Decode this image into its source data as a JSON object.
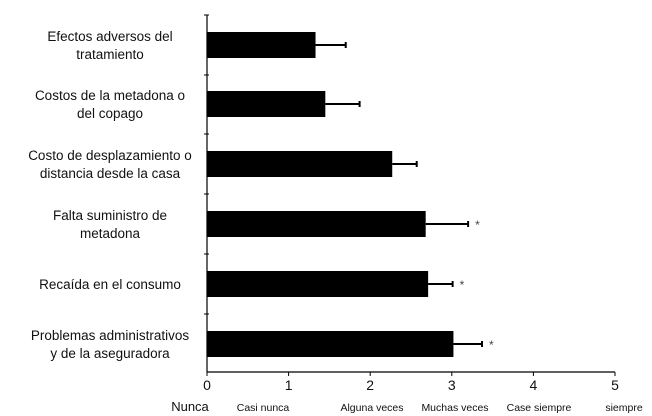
{
  "chart_data": {
    "type": "bar",
    "orientation": "horizontal",
    "categories": [
      [
        "Efectos adversos del",
        "tratamiento"
      ],
      [
        "Costos de la metadona o",
        "del copago"
      ],
      [
        "Costo de desplazamiento o",
        "distancia desde la casa"
      ],
      [
        "Falta suministro de",
        "metadona"
      ],
      [
        "Recaída en el consumo"
      ],
      [
        "Problemas administrativos",
        "y de la aseguradora"
      ]
    ],
    "values": [
      1.33,
      1.45,
      2.27,
      2.68,
      2.71,
      3.02
    ],
    "error": [
      0.37,
      0.42,
      0.3,
      0.52,
      0.3,
      0.35
    ],
    "significance": [
      "",
      "",
      "",
      "*",
      "*",
      "*"
    ],
    "xlim": [
      0,
      5
    ],
    "xticks": [
      "0",
      "1",
      "2",
      "3",
      "4",
      "5"
    ],
    "frequency_labels": [
      "Nunca",
      "Casi nunca",
      "Alguna veces",
      "Muchas veces",
      "Case siempre",
      "siempre"
    ],
    "title": "",
    "xlabel": "",
    "ylabel": "",
    "bar_color": "#000000",
    "grid": false,
    "legend": "none"
  }
}
